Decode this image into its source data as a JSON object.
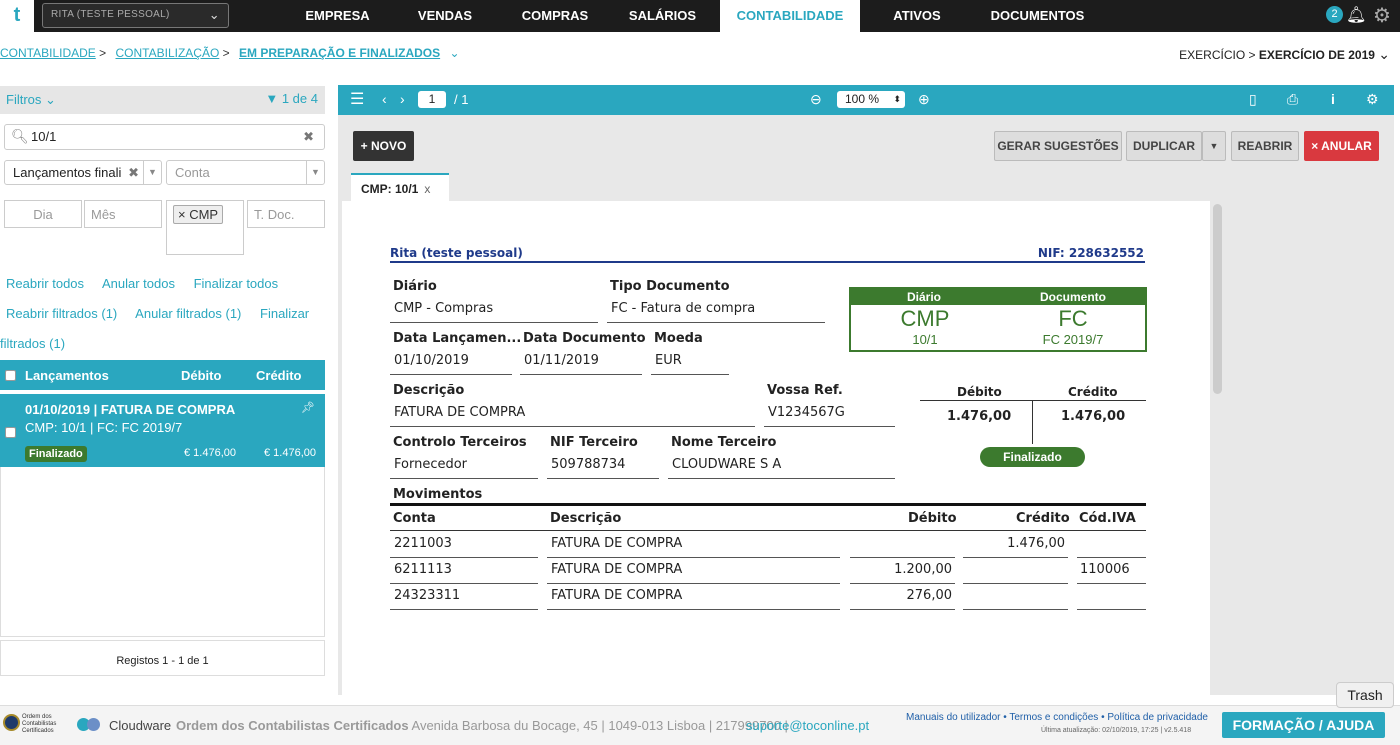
{
  "topbar": {
    "logo": "t",
    "company": "RITA (TESTE PESSOAL)",
    "nav": [
      "EMPRESA",
      "VENDAS",
      "COMPRAS",
      "SALÁRIOS",
      "CONTABILIDADE",
      "ATIVOS",
      "DOCUMENTOS"
    ],
    "active_nav": "CONTABILIDADE",
    "notif_count": "2"
  },
  "breadcrumb": {
    "items": [
      "CONTABILIDADE",
      "CONTABILIZAÇÃO",
      "EM PREPARAÇÃO E FINALIZADOS"
    ],
    "sep": ">",
    "exercicio_label": "EXERCÍCIO >",
    "exercicio_value": "EXERCÍCIO DE 2019"
  },
  "left": {
    "filters_label": "Filtros",
    "filter_count": "1 de 4",
    "search_value": "10/1",
    "select1": "Lançamentos finali",
    "select2_placeholder": "Conta",
    "dia": "Dia",
    "mes": "Mês",
    "tag": "CMP",
    "tdoc": "T. Doc.",
    "links1": [
      "Reabrir todos",
      "Anular todos",
      "Finalizar todos"
    ],
    "links2": [
      "Reabrir filtrados (1)",
      "Anular filtrados (1)",
      "Finalizar"
    ],
    "links3": "filtrados (1)",
    "list_header": {
      "col1": "Lançamentos",
      "col2": "Débito",
      "col3": "Crédito"
    },
    "item": {
      "title": "01/10/2019 | FATURA DE COMPRA",
      "subtitle": "CMP: 10/1 | FC: FC 2019/7",
      "status": "Finalizado",
      "debito": "€ 1.476,00",
      "credito": "€ 1.476,00"
    },
    "registos": "Registos 1 - 1 de 1"
  },
  "toolbar": {
    "page": "1",
    "page_total": "/ 1",
    "zoom": "100 %"
  },
  "buttons": {
    "novo": "+ NOVO",
    "gerar": "GERAR SUGESTÕES",
    "duplicar": "DUPLICAR",
    "reabrir": "REABRIR",
    "anular": "× ANULAR"
  },
  "tab": {
    "label": "CMP: 10/1",
    "close": "x"
  },
  "doc": {
    "owner": "Rita (teste pessoal)",
    "nif": "NIF: 228632552",
    "diario_lbl": "Diário",
    "diario_val": "CMP - Compras",
    "tipo_lbl": "Tipo Documento",
    "tipo_val": "FC - Fatura de compra",
    "box_diario_lbl": "Diário",
    "box_doc_lbl": "Documento",
    "box_diario_big": "CMP",
    "box_diario_small": "10/1",
    "box_doc_big": "FC",
    "box_doc_small": "FC 2019/7",
    "data_lanc_lbl": "Data Lançamen...",
    "data_lanc_val": "01/10/2019",
    "data_doc_lbl": "Data Documento",
    "data_doc_val": "01/11/2019",
    "moeda_lbl": "Moeda",
    "moeda_val": "EUR",
    "desc_lbl": "Descrição",
    "desc_val": "FATURA DE COMPRA",
    "ref_lbl": "Vossa Ref.",
    "ref_val": "V1234567G",
    "tot_deb_lbl": "Débito",
    "tot_cred_lbl": "Crédito",
    "tot_deb": "1.476,00",
    "tot_cred": "1.476,00",
    "ctrl_lbl": "Controlo Terceiros",
    "ctrl_val": "Fornecedor",
    "nif_t_lbl": "NIF Terceiro",
    "nif_t_val": "509788734",
    "nome_lbl": "Nome Terceiro",
    "nome_val": "CLOUDWARE S A",
    "status": "Finalizado",
    "mov_title": "Movimentos",
    "mov_headers": [
      "Conta",
      "Descrição",
      "Débito",
      "Crédito",
      "Cód.IVA"
    ],
    "mov_rows": [
      [
        "2211003",
        "FATURA DE COMPRA",
        "",
        "1.476,00",
        ""
      ],
      [
        "6211113",
        "FATURA DE COMPRA",
        "1.200,00",
        "",
        "110006"
      ],
      [
        "24323311",
        "FATURA DE COMPRA",
        "276,00",
        "",
        ""
      ]
    ]
  },
  "footer": {
    "occ": "Ordem dos Contabilistas Certificados",
    "cloudware": "Cloudware",
    "address_bold": "Ordem dos Contabilistas Certificados",
    "address": "Avenida Barbosa du Bocage, 45 | 1049-013 Lisboa | 217999700 |",
    "email": "suporte@toconline.pt",
    "links": "Manuais do utilizador • Termos e condições • Política de privacidade",
    "update": "Última atualização: 02/10/2019, 17:25 | v2.5.418",
    "formacao": "FORMAÇÃO / AJUDA",
    "trash": "Trash"
  }
}
